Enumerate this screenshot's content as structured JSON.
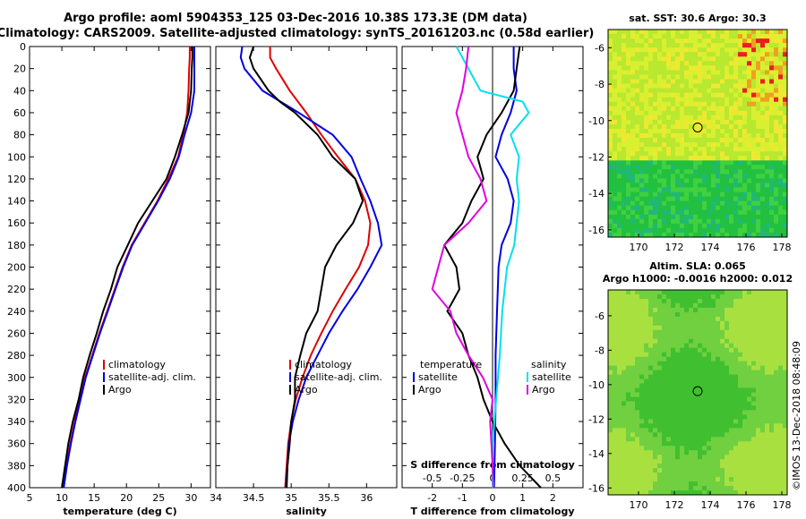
{
  "header": {
    "line1": "Argo profile: aoml 5904353_125 03-Dec-2016 10.38S 173.3E (DM data)",
    "line2": "Climatology: CARS2009. Satellite-adjusted climatology: synTS_20161203.nc (0.58d earlier)"
  },
  "colors": {
    "climatology": "#e00000",
    "satellite": "#0000e0",
    "argo": "#000000",
    "sat_salinity": "#00e0f0",
    "argo_salinity_diff": "#e000e0"
  },
  "chart_data": [
    {
      "type": "line",
      "title": "",
      "xlabel": "temperature (deg C)",
      "ylabel": "",
      "xlim": [
        5,
        33
      ],
      "ylim": [
        400,
        0
      ],
      "xticks": [
        5,
        10,
        15,
        20,
        25,
        30
      ],
      "yticks": [
        0,
        20,
        40,
        60,
        80,
        100,
        120,
        140,
        160,
        180,
        200,
        220,
        240,
        260,
        280,
        300,
        320,
        340,
        360,
        380,
        400
      ],
      "legend": [
        "climatology",
        "satellite-adj. clim.",
        "Argo"
      ],
      "series": [
        {
          "name": "climatology",
          "color": "#e00000",
          "points": [
            [
              29.8,
              0
            ],
            [
              29.8,
              10
            ],
            [
              29.7,
              20
            ],
            [
              29.6,
              40
            ],
            [
              29.4,
              60
            ],
            [
              28.8,
              80
            ],
            [
              28,
              100
            ],
            [
              26.5,
              120
            ],
            [
              24.8,
              140
            ],
            [
              22.8,
              160
            ],
            [
              20.8,
              180
            ],
            [
              19.4,
              200
            ],
            [
              18.2,
              220
            ],
            [
              17,
              240
            ],
            [
              15.8,
              260
            ],
            [
              14.7,
              280
            ],
            [
              13.6,
              300
            ],
            [
              12.8,
              320
            ],
            [
              12,
              340
            ],
            [
              11.3,
              360
            ],
            [
              10.7,
              380
            ],
            [
              10.2,
              400
            ]
          ]
        },
        {
          "name": "satellite-adj. clim.",
          "color": "#0000e0",
          "points": [
            [
              30.5,
              0
            ],
            [
              30.5,
              10
            ],
            [
              30.5,
              20
            ],
            [
              30.5,
              40
            ],
            [
              30,
              60
            ],
            [
              29,
              80
            ],
            [
              28.1,
              100
            ],
            [
              26.7,
              120
            ],
            [
              24.9,
              140
            ],
            [
              22.9,
              160
            ],
            [
              20.9,
              180
            ],
            [
              19.5,
              200
            ],
            [
              18.3,
              220
            ],
            [
              17.1,
              240
            ],
            [
              15.9,
              260
            ],
            [
              14.8,
              280
            ],
            [
              13.7,
              300
            ],
            [
              12.9,
              320
            ],
            [
              12.1,
              340
            ],
            [
              11.4,
              360
            ],
            [
              10.8,
              380
            ],
            [
              10.3,
              400
            ]
          ]
        },
        {
          "name": "Argo",
          "color": "#000000",
          "points": [
            [
              30.2,
              0
            ],
            [
              30.2,
              10
            ],
            [
              30.1,
              20
            ],
            [
              30,
              40
            ],
            [
              29.6,
              60
            ],
            [
              28.6,
              80
            ],
            [
              27.5,
              100
            ],
            [
              26.2,
              120
            ],
            [
              24,
              140
            ],
            [
              21.8,
              160
            ],
            [
              20.2,
              180
            ],
            [
              18.6,
              200
            ],
            [
              17.6,
              220
            ],
            [
              16.4,
              240
            ],
            [
              15.4,
              260
            ],
            [
              14.3,
              280
            ],
            [
              13.3,
              300
            ],
            [
              12.6,
              320
            ],
            [
              11.7,
              340
            ],
            [
              11,
              360
            ],
            [
              10.5,
              380
            ],
            [
              10,
              400
            ]
          ]
        }
      ]
    },
    {
      "type": "line",
      "xlabel": "salinity",
      "xlim": [
        34,
        36.4
      ],
      "ylim": [
        400,
        0
      ],
      "xticks": [
        34,
        34.5,
        35,
        35.5,
        36
      ],
      "legend": [
        "climatology",
        "satellite-adj. clim.",
        "Argo"
      ],
      "series": [
        {
          "name": "climatology",
          "color": "#e00000",
          "points": [
            [
              34.72,
              0
            ],
            [
              34.72,
              10
            ],
            [
              34.8,
              20
            ],
            [
              34.98,
              40
            ],
            [
              35.2,
              60
            ],
            [
              35.4,
              80
            ],
            [
              35.62,
              100
            ],
            [
              35.85,
              120
            ],
            [
              35.98,
              140
            ],
            [
              36.05,
              160
            ],
            [
              36.02,
              180
            ],
            [
              35.9,
              200
            ],
            [
              35.72,
              220
            ],
            [
              35.55,
              240
            ],
            [
              35.4,
              260
            ],
            [
              35.26,
              280
            ],
            [
              35.15,
              300
            ],
            [
              35.06,
              320
            ],
            [
              35,
              340
            ],
            [
              34.96,
              360
            ],
            [
              34.94,
              380
            ],
            [
              34.92,
              400
            ]
          ]
        },
        {
          "name": "satellite-adj. clim.",
          "color": "#0000e0",
          "points": [
            [
              34.35,
              0
            ],
            [
              34.33,
              10
            ],
            [
              34.38,
              20
            ],
            [
              34.62,
              40
            ],
            [
              35.1,
              60
            ],
            [
              35.55,
              80
            ],
            [
              35.8,
              100
            ],
            [
              35.92,
              120
            ],
            [
              36.05,
              140
            ],
            [
              36.15,
              160
            ],
            [
              36.2,
              180
            ],
            [
              36.05,
              200
            ],
            [
              35.88,
              220
            ],
            [
              35.68,
              240
            ],
            [
              35.5,
              260
            ],
            [
              35.35,
              280
            ],
            [
              35.2,
              300
            ],
            [
              35.1,
              320
            ],
            [
              35.02,
              340
            ],
            [
              34.97,
              360
            ],
            [
              34.95,
              380
            ],
            [
              34.93,
              400
            ]
          ]
        },
        {
          "name": "Argo",
          "color": "#000000",
          "points": [
            [
              34.5,
              0
            ],
            [
              34.45,
              10
            ],
            [
              34.5,
              20
            ],
            [
              34.7,
              40
            ],
            [
              34.85,
              50
            ],
            [
              35.05,
              60
            ],
            [
              35.35,
              80
            ],
            [
              35.55,
              100
            ],
            [
              35.7,
              110
            ],
            [
              35.85,
              120
            ],
            [
              35.95,
              140
            ],
            [
              35.82,
              160
            ],
            [
              35.6,
              180
            ],
            [
              35.45,
              200
            ],
            [
              35.4,
              220
            ],
            [
              35.35,
              240
            ],
            [
              35.2,
              260
            ],
            [
              35.12,
              280
            ],
            [
              35.05,
              300
            ],
            [
              35.05,
              320
            ],
            [
              35,
              340
            ],
            [
              34.98,
              360
            ],
            [
              34.95,
              380
            ],
            [
              34.94,
              400
            ]
          ]
        }
      ]
    },
    {
      "type": "line",
      "xlabel": "T difference from climatology",
      "secondary_xlabel": "S difference from climatology",
      "xlim": [
        -3,
        3
      ],
      "ylim": [
        400,
        0
      ],
      "xticks": [
        -2,
        -1,
        0,
        1,
        2
      ],
      "secondary_xticks": [
        -0.5,
        -0.25,
        0,
        0.25,
        0.5
      ],
      "legend_temperature": {
        "title": "temperature",
        "items": [
          "satellite",
          "Argo"
        ]
      },
      "legend_salinity": {
        "title": "salinity",
        "items": [
          "satellite",
          "Argo"
        ]
      },
      "series": [
        {
          "name": "temperature satellite",
          "color": "#0000e0",
          "points": [
            [
              0.7,
              0
            ],
            [
              0.7,
              20
            ],
            [
              0.8,
              40
            ],
            [
              0.6,
              60
            ],
            [
              0.3,
              80
            ],
            [
              0.1,
              100
            ],
            [
              0.5,
              120
            ],
            [
              0.7,
              140
            ],
            [
              0.6,
              160
            ],
            [
              0.3,
              180
            ],
            [
              0.2,
              200
            ],
            [
              0.15,
              240
            ],
            [
              0.1,
              280
            ],
            [
              0.1,
              320
            ],
            [
              0.08,
              360
            ],
            [
              0.05,
              400
            ]
          ]
        },
        {
          "name": "temperature Argo",
          "color": "#000000",
          "points": [
            [
              0.9,
              0
            ],
            [
              0.8,
              20
            ],
            [
              0.7,
              40
            ],
            [
              0.3,
              60
            ],
            [
              -0.2,
              80
            ],
            [
              -0.5,
              100
            ],
            [
              -0.3,
              120
            ],
            [
              -0.7,
              140
            ],
            [
              -1.0,
              160
            ],
            [
              -1.6,
              180
            ],
            [
              -1.2,
              200
            ],
            [
              -1.1,
              220
            ],
            [
              -1.5,
              240
            ],
            [
              -1.0,
              260
            ],
            [
              -0.8,
              280
            ],
            [
              -0.5,
              300
            ],
            [
              -0.3,
              320
            ],
            [
              0.0,
              340
            ],
            [
              0.4,
              360
            ],
            [
              0.9,
              380
            ],
            [
              1.6,
              400
            ]
          ]
        },
        {
          "name": "salinity satellite",
          "color": "#00e0f0",
          "points": [
            [
              -0.3,
              0
            ],
            [
              -0.2,
              20
            ],
            [
              -0.1,
              40
            ],
            [
              0.25,
              50
            ],
            [
              0.3,
              60
            ],
            [
              0.15,
              80
            ],
            [
              0.22,
              100
            ],
            [
              0.2,
              120
            ],
            [
              0.22,
              140
            ],
            [
              0.2,
              160
            ],
            [
              0.18,
              180
            ],
            [
              0.12,
              200
            ],
            [
              0.1,
              220
            ],
            [
              0.08,
              240
            ],
            [
              0.06,
              280
            ],
            [
              0.03,
              320
            ],
            [
              0.0,
              360
            ],
            [
              0.0,
              400
            ]
          ]
        },
        {
          "name": "salinity Argo",
          "color": "#e000e0",
          "points": [
            [
              -0.2,
              0
            ],
            [
              -0.22,
              20
            ],
            [
              -0.25,
              40
            ],
            [
              -0.3,
              60
            ],
            [
              -0.25,
              80
            ],
            [
              -0.2,
              100
            ],
            [
              -0.1,
              120
            ],
            [
              -0.05,
              140
            ],
            [
              -0.2,
              160
            ],
            [
              -0.4,
              180
            ],
            [
              -0.45,
              200
            ],
            [
              -0.5,
              220
            ],
            [
              -0.35,
              240
            ],
            [
              -0.3,
              260
            ],
            [
              -0.2,
              280
            ],
            [
              -0.08,
              300
            ],
            [
              0.0,
              320
            ],
            [
              -0.02,
              340
            ],
            [
              -0.01,
              360
            ],
            [
              0.0,
              380
            ],
            [
              0.01,
              400
            ]
          ]
        }
      ]
    },
    {
      "type": "heatmap",
      "title": "sat. SST: 30.6 Argo: 30.3",
      "xlim": [
        168.3,
        178.3
      ],
      "ylim": [
        -16.4,
        -5
      ],
      "xticks": [
        170,
        172,
        174,
        176,
        178
      ],
      "yticks": [
        -6,
        -8,
        -10,
        -12,
        -14,
        -16
      ],
      "marker": {
        "lon": 173.3,
        "lat": -10.38
      }
    },
    {
      "type": "heatmap",
      "title": "Altim. SLA: 0.065",
      "subtitle": "Argo h1000: -0.0016 h2000: 0.012",
      "xlim": [
        168.3,
        178.3
      ],
      "ylim": [
        -16.4,
        -4.5
      ],
      "xticks": [
        170,
        172,
        174,
        176,
        178
      ],
      "yticks": [
        -6,
        -8,
        -10,
        -12,
        -14,
        -16
      ],
      "marker": {
        "lon": 173.3,
        "lat": -10.38
      }
    }
  ],
  "footer": {
    "credit": "©IMOS 13-Dec-2018 08:48:09"
  }
}
